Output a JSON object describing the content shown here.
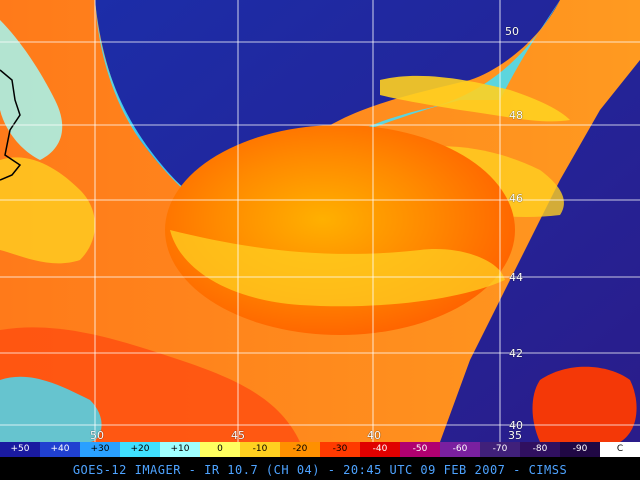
{
  "caption": "GOES-12 IMAGER - IR 10.7 (CH 04) - 20:45 UTC 09 FEB 2007 - CIMSS",
  "latitude_labels": [
    "50",
    "48",
    "46",
    "44",
    "42",
    "40"
  ],
  "longitude_labels": [
    "50",
    "45",
    "40",
    "35"
  ],
  "colorbar": {
    "labels": [
      "+50",
      "+40",
      "+30",
      "+20",
      "+10",
      "0",
      "-10",
      "-20",
      "-30",
      "-40",
      "-50",
      "-60",
      "-70",
      "-80",
      "-90",
      "C"
    ],
    "colors": [
      "#1a1aa0",
      "#2040d0",
      "#2aa0ff",
      "#40e0ff",
      "#a0ffff",
      "#ffff60",
      "#ffd020",
      "#ff9000",
      "#ff3a00",
      "#e00000",
      "#b00070",
      "#7a20a0",
      "#40207a",
      "#301060",
      "#200844",
      "#ffffff"
    ]
  }
}
